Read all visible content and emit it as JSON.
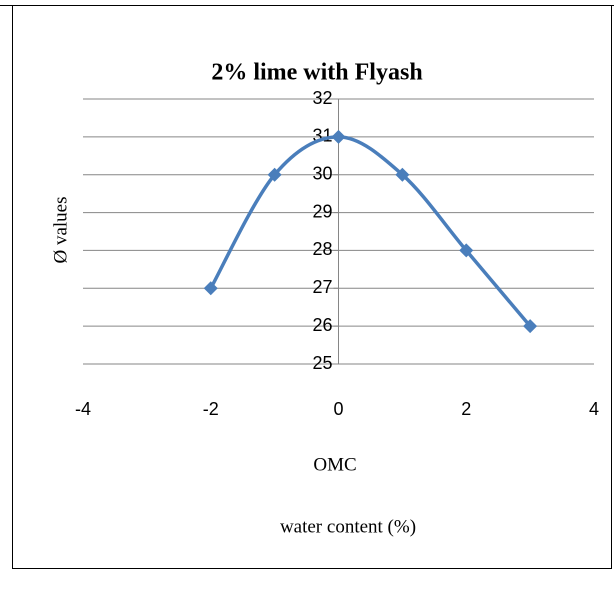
{
  "chart_data": {
    "type": "scatter-smooth",
    "title": "2% lime with Flyash",
    "ylabel": "Ø values",
    "xlabel": [
      "OMC",
      "water content (%)"
    ],
    "x": [
      -2,
      -1,
      0,
      1,
      2,
      3
    ],
    "series": [
      {
        "color": "#4a7ebb",
        "values": [
          27,
          30,
          31,
          30,
          28,
          26
        ]
      }
    ],
    "xlim": [
      -4,
      4
    ],
    "xticks": [
      -4,
      -2,
      0,
      2,
      4
    ],
    "ylim": [
      25,
      32
    ],
    "yticks": [
      25,
      26,
      27,
      28,
      29,
      30,
      31,
      32
    ],
    "grid": true
  }
}
